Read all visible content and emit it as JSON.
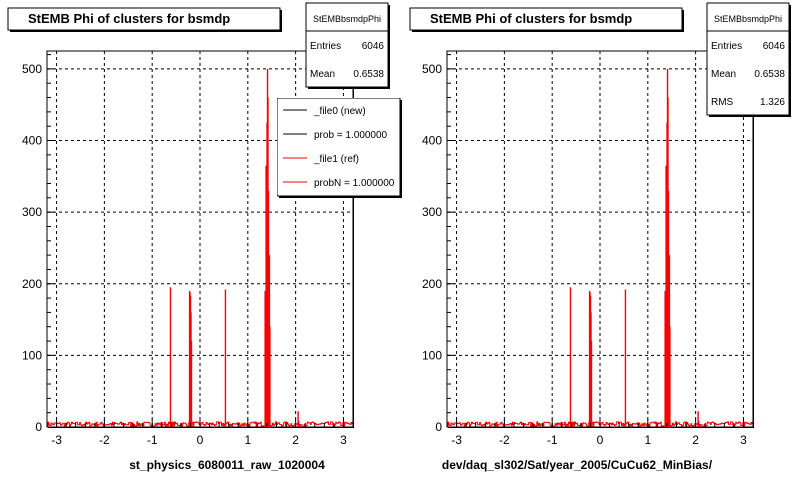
{
  "footer_text": "",
  "chart_data": [
    {
      "type": "histogram",
      "title": "StEMB Phi of clusters for bsmdp",
      "xlabel": "st_physics_6080011_raw_1020004",
      "ylabel": "",
      "xlim": [
        -3.2,
        3.2
      ],
      "ylim": [
        0,
        525
      ],
      "x_ticks": [
        -3,
        -2,
        -1,
        0,
        1,
        2,
        3
      ],
      "y_ticks": [
        0,
        100,
        200,
        300,
        400,
        500
      ],
      "grid": true,
      "stats": {
        "name": "StEMBbsmdpPhi",
        "rows": [
          {
            "label": "Entries",
            "value": "6046"
          },
          {
            "label": "Mean",
            "value": "0.6538"
          }
        ]
      },
      "legend": {
        "placement": "top-right",
        "entries": [
          {
            "label": "_file0 (new)",
            "color": "#000000"
          },
          {
            "label": "prob = 1.000000",
            "color": "#000000"
          },
          {
            "label": "_file1 (ref)",
            "color": "#ff0000"
          },
          {
            "label": "probN = 1.000000",
            "color": "#ff0000"
          }
        ]
      },
      "series_color": "#ff0000",
      "baseline_level": 4,
      "peaks": [
        {
          "x": -0.62,
          "y": 195
        },
        {
          "x": -0.22,
          "y": 190
        },
        {
          "x": -0.21,
          "y": 188
        },
        {
          "x": -0.2,
          "y": 183
        },
        {
          "x": -0.19,
          "y": 160
        },
        {
          "x": -0.18,
          "y": 120
        },
        {
          "x": 0.53,
          "y": 192
        },
        {
          "x": 1.36,
          "y": 190
        },
        {
          "x": 1.38,
          "y": 365
        },
        {
          "x": 1.4,
          "y": 425
        },
        {
          "x": 1.41,
          "y": 500
        },
        {
          "x": 1.42,
          "y": 460
        },
        {
          "x": 1.43,
          "y": 330
        },
        {
          "x": 1.45,
          "y": 240
        },
        {
          "x": 1.46,
          "y": 140
        },
        {
          "x": 2.05,
          "y": 22
        }
      ]
    },
    {
      "type": "histogram",
      "title": "StEMB Phi of clusters for bsmdp",
      "xlabel": "dev/daq_sl302/Sat/year_2005/CuCu62_MinBias/",
      "ylabel": "",
      "xlim": [
        -3.2,
        3.2
      ],
      "ylim": [
        0,
        525
      ],
      "x_ticks": [
        -3,
        -2,
        -1,
        0,
        1,
        2,
        3
      ],
      "y_ticks": [
        0,
        100,
        200,
        300,
        400,
        500
      ],
      "grid": true,
      "stats": {
        "name": "StEMBbsmdpPhi",
        "rows": [
          {
            "label": "Entries",
            "value": "6046"
          },
          {
            "label": "Mean",
            "value": "0.6538"
          },
          {
            "label": "RMS",
            "value": "1.326"
          }
        ]
      },
      "series_color": "#ff0000",
      "baseline_level": 4,
      "peaks": [
        {
          "x": -0.62,
          "y": 195
        },
        {
          "x": -0.22,
          "y": 190
        },
        {
          "x": -0.21,
          "y": 188
        },
        {
          "x": -0.2,
          "y": 183
        },
        {
          "x": -0.19,
          "y": 160
        },
        {
          "x": -0.18,
          "y": 120
        },
        {
          "x": 0.53,
          "y": 192
        },
        {
          "x": 1.36,
          "y": 190
        },
        {
          "x": 1.38,
          "y": 365
        },
        {
          "x": 1.4,
          "y": 425
        },
        {
          "x": 1.41,
          "y": 500
        },
        {
          "x": 1.42,
          "y": 460
        },
        {
          "x": 1.43,
          "y": 330
        },
        {
          "x": 1.45,
          "y": 240
        },
        {
          "x": 1.46,
          "y": 140
        },
        {
          "x": 2.05,
          "y": 22
        }
      ]
    }
  ]
}
